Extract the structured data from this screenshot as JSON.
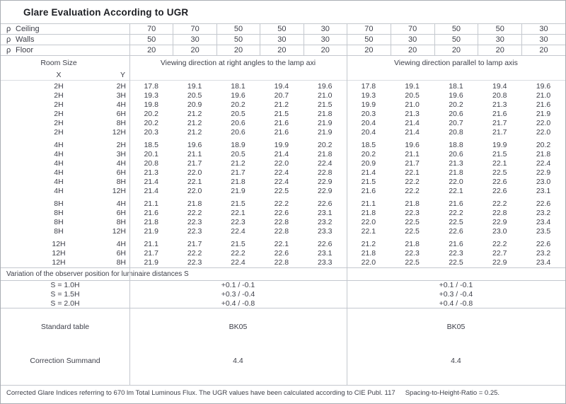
{
  "title": "Glare Evaluation According to UGR",
  "colors": {
    "text": "#3d3f49",
    "title": "#1d1f24",
    "line": "#c4c8ce",
    "border": "#a9adb3"
  },
  "reflectance": {
    "rho_symbol": "ρ",
    "rows": [
      {
        "label": "Ceiling",
        "values_right_angles": [
          "70",
          "70",
          "50",
          "50",
          "30"
        ],
        "values_parallel": [
          "70",
          "70",
          "50",
          "50",
          "30"
        ]
      },
      {
        "label": "Walls",
        "values_right_angles": [
          "50",
          "30",
          "50",
          "30",
          "30"
        ],
        "values_parallel": [
          "50",
          "30",
          "50",
          "30",
          "30"
        ]
      },
      {
        "label": "Floor",
        "values_right_angles": [
          "20",
          "20",
          "20",
          "20",
          "20"
        ],
        "values_parallel": [
          "20",
          "20",
          "20",
          "20",
          "20"
        ]
      }
    ]
  },
  "headers": {
    "room_size": "Room Size",
    "x": "X",
    "y": "Y",
    "right_angles_section": "Viewing direction at right angles to the lamp axi",
    "parallel_section": "Viewing direction parallel to lamp axis"
  },
  "room_groups": [
    {
      "x": "2H",
      "rows": [
        {
          "y": "2H",
          "right_angles": [
            "17.8",
            "19.1",
            "18.1",
            "19.4",
            "19.6"
          ],
          "parallel": [
            "17.8",
            "19.1",
            "18.1",
            "19.4",
            "19.6"
          ]
        },
        {
          "y": "3H",
          "right_angles": [
            "19.3",
            "20.5",
            "19.6",
            "20.7",
            "21.0"
          ],
          "parallel": [
            "19.3",
            "20.5",
            "19.6",
            "20.8",
            "21.0"
          ]
        },
        {
          "y": "4H",
          "right_angles": [
            "19.8",
            "20.9",
            "20.2",
            "21.2",
            "21.5"
          ],
          "parallel": [
            "19.9",
            "21.0",
            "20.2",
            "21.3",
            "21.6"
          ]
        },
        {
          "y": "6H",
          "right_angles": [
            "20.2",
            "21.2",
            "20.5",
            "21.5",
            "21.8"
          ],
          "parallel": [
            "20.3",
            "21.3",
            "20.6",
            "21.6",
            "21.9"
          ]
        },
        {
          "y": "8H",
          "right_angles": [
            "20.2",
            "21.2",
            "20.6",
            "21.6",
            "21.9"
          ],
          "parallel": [
            "20.4",
            "21.4",
            "20.7",
            "21.7",
            "22.0"
          ]
        },
        {
          "y": "12H",
          "right_angles": [
            "20.3",
            "21.2",
            "20.6",
            "21.6",
            "21.9"
          ],
          "parallel": [
            "20.4",
            "21.4",
            "20.8",
            "21.7",
            "22.0"
          ]
        }
      ]
    },
    {
      "x": "4H",
      "rows": [
        {
          "y": "2H",
          "right_angles": [
            "18.5",
            "19.6",
            "18.9",
            "19.9",
            "20.2"
          ],
          "parallel": [
            "18.5",
            "19.6",
            "18.8",
            "19.9",
            "20.2"
          ]
        },
        {
          "y": "3H",
          "right_angles": [
            "20.1",
            "21.1",
            "20.5",
            "21.4",
            "21.8"
          ],
          "parallel": [
            "20.2",
            "21.1",
            "20.6",
            "21.5",
            "21.8"
          ]
        },
        {
          "y": "4H",
          "right_angles": [
            "20.8",
            "21.7",
            "21.2",
            "22.0",
            "22.4"
          ],
          "parallel": [
            "20.9",
            "21.7",
            "21.3",
            "22.1",
            "22.4"
          ]
        },
        {
          "y": "6H",
          "right_angles": [
            "21.3",
            "22.0",
            "21.7",
            "22.4",
            "22.8"
          ],
          "parallel": [
            "21.4",
            "22.1",
            "21.8",
            "22.5",
            "22.9"
          ]
        },
        {
          "y": "8H",
          "right_angles": [
            "21.4",
            "22.1",
            "21.8",
            "22.4",
            "22.9"
          ],
          "parallel": [
            "21.5",
            "22.2",
            "22.0",
            "22.6",
            "23.0"
          ]
        },
        {
          "y": "12H",
          "right_angles": [
            "21.4",
            "22.0",
            "21.9",
            "22.5",
            "22.9"
          ],
          "parallel": [
            "21.6",
            "22.2",
            "22.1",
            "22.6",
            "23.1"
          ]
        }
      ]
    },
    {
      "x": "8H",
      "rows": [
        {
          "y": "4H",
          "right_angles": [
            "21.1",
            "21.8",
            "21.5",
            "22.2",
            "22.6"
          ],
          "parallel": [
            "21.1",
            "21.8",
            "21.6",
            "22.2",
            "22.6"
          ]
        },
        {
          "y": "6H",
          "right_angles": [
            "21.6",
            "22.2",
            "22.1",
            "22.6",
            "23.1"
          ],
          "parallel": [
            "21.8",
            "22.3",
            "22.2",
            "22.8",
            "23.2"
          ]
        },
        {
          "y": "8H",
          "right_angles": [
            "21.8",
            "22.3",
            "22.3",
            "22.8",
            "23.2"
          ],
          "parallel": [
            "22.0",
            "22.5",
            "22.5",
            "22.9",
            "23.4"
          ]
        },
        {
          "y": "12H",
          "right_angles": [
            "21.9",
            "22.3",
            "22.4",
            "22.8",
            "23.3"
          ],
          "parallel": [
            "22.1",
            "22.5",
            "22.6",
            "23.0",
            "23.5"
          ]
        }
      ]
    },
    {
      "x": "12H",
      "rows": [
        {
          "y": "4H",
          "right_angles": [
            "21.1",
            "21.7",
            "21.5",
            "22.1",
            "22.6"
          ],
          "parallel": [
            "21.2",
            "21.8",
            "21.6",
            "22.2",
            "22.6"
          ]
        },
        {
          "y": "6H",
          "right_angles": [
            "21.7",
            "22.2",
            "22.2",
            "22.6",
            "23.1"
          ],
          "parallel": [
            "21.8",
            "22.3",
            "22.3",
            "22.7",
            "23.2"
          ]
        },
        {
          "y": "8H",
          "right_angles": [
            "21.9",
            "22.3",
            "22.4",
            "22.8",
            "23.3"
          ],
          "parallel": [
            "22.0",
            "22.5",
            "22.5",
            "22.9",
            "23.4"
          ]
        }
      ]
    }
  ],
  "variation": {
    "label": "Variation of the observer position for luminaire distances S",
    "rows": [
      {
        "s": "S = 1.0H",
        "right_angles": "+0.1 / -0.1",
        "parallel": "+0.1 / -0.1"
      },
      {
        "s": "S = 1.5H",
        "right_angles": "+0.3 / -0.4",
        "parallel": "+0.3 / -0.4"
      },
      {
        "s": "S = 2.0H",
        "right_angles": "+0.4 / -0.8",
        "parallel": "+0.4 / -0.8"
      }
    ]
  },
  "standard_table": {
    "label": "Standard table",
    "right_angles": "BK05",
    "parallel": "BK05"
  },
  "correction_summand": {
    "label": "Correction Summand",
    "right_angles": "4.4",
    "parallel": "4.4"
  },
  "footer": {
    "text": "Corrected Glare Indices referring to 670 lm Total Luminous Flux. The UGR values have been calculated according to CIE Publ. 117",
    "spacing_note": "Spacing-to-Height-Ratio = 0.25."
  }
}
